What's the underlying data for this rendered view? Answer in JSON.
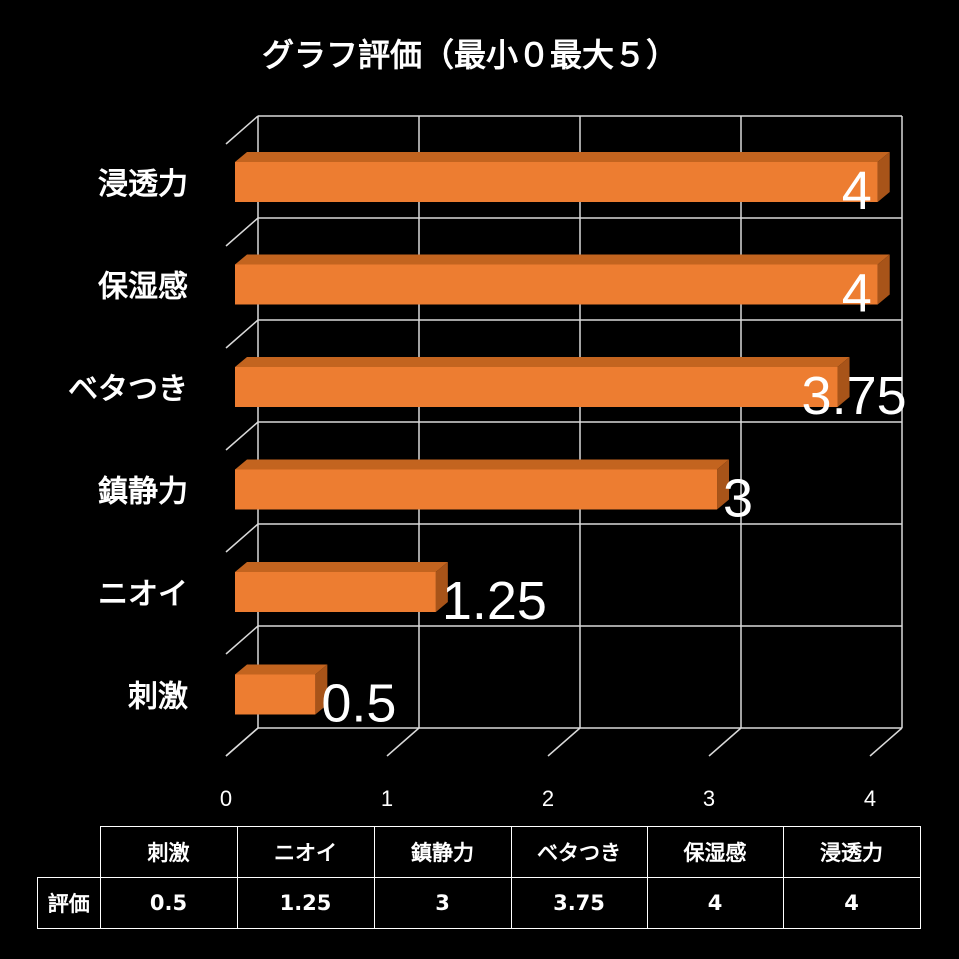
{
  "chart_data": {
    "type": "bar",
    "orientation": "horizontal",
    "style": "3d",
    "title": "グラフ評価（最小０最大５）",
    "categories": [
      "浸透力",
      "保湿感",
      "ベタつき",
      "鎮静力",
      "ニオイ",
      "刺激"
    ],
    "values": [
      4,
      4,
      3.75,
      3,
      1.25,
      0.5
    ],
    "data_labels": [
      "4",
      "4",
      "3.75",
      "3",
      "1.25",
      "0.5"
    ],
    "x_ticks": [
      "0",
      "1",
      "2",
      "3",
      "4"
    ],
    "xlim": [
      0,
      4
    ],
    "grid": true,
    "colors": {
      "bar": "#ED7D31",
      "bar_top": "#C3641F",
      "bar_side": "#A85419",
      "grid": "#d9d9d9",
      "background": "#000000"
    },
    "data_table": {
      "row_label": "評価",
      "columns": [
        "刺激",
        "ニオイ",
        "鎮静力",
        "ベタつき",
        "保湿感",
        "浸透力"
      ],
      "values": [
        "0.5",
        "1.25",
        "3",
        "3.75",
        "4",
        "4"
      ]
    }
  }
}
